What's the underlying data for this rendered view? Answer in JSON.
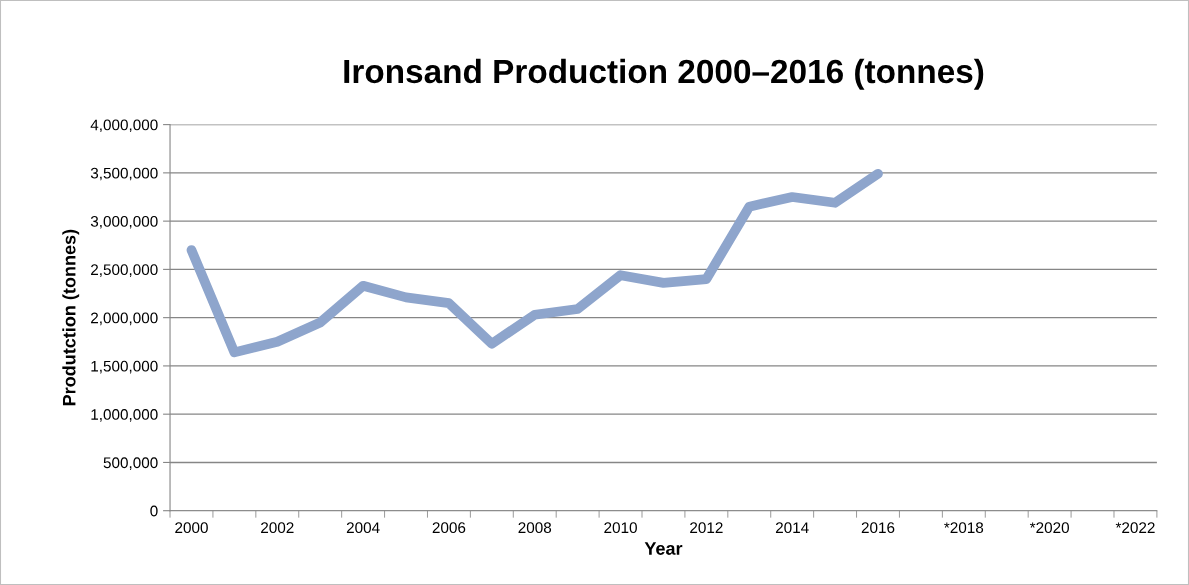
{
  "chart_data": {
    "type": "line",
    "title": "Ironsand Production 2000–2016 (tonnes)",
    "xlabel": "Year",
    "ylabel": "Produtction (tonnes)",
    "categories": [
      "2000",
      null,
      "2002",
      null,
      "2004",
      null,
      "2006",
      null,
      "2008",
      null,
      "2010",
      null,
      "2012",
      null,
      "2014",
      null,
      "2016",
      null,
      "*2018",
      null,
      "*2020",
      null,
      "*2022"
    ],
    "series": [
      {
        "color": "#8ea5cc",
        "values": [
          2700000,
          1640000,
          1750000,
          1950000,
          2330000,
          2210000,
          2150000,
          1730000,
          2030000,
          2090000,
          2440000,
          2360000,
          2400000,
          3150000,
          3250000,
          3190000,
          3490000,
          null,
          null,
          null,
          null,
          null,
          null
        ]
      }
    ],
    "ylim": [
      0,
      4000000
    ],
    "yticks": [
      {
        "value": 0,
        "label": "0"
      },
      {
        "value": 500000,
        "label": "500,000"
      },
      {
        "value": 1000000,
        "label": "1,000,000"
      },
      {
        "value": 1500000,
        "label": "1,500,000"
      },
      {
        "value": 2000000,
        "label": "2,000,000"
      },
      {
        "value": 2500000,
        "label": "2,500,000"
      },
      {
        "value": 3000000,
        "label": "3,000,000"
      },
      {
        "value": 3500000,
        "label": "3,500,000"
      },
      {
        "value": 4000000,
        "label": "4,000,000"
      }
    ],
    "grid": "y",
    "marker": "none",
    "line_style": "solid"
  }
}
